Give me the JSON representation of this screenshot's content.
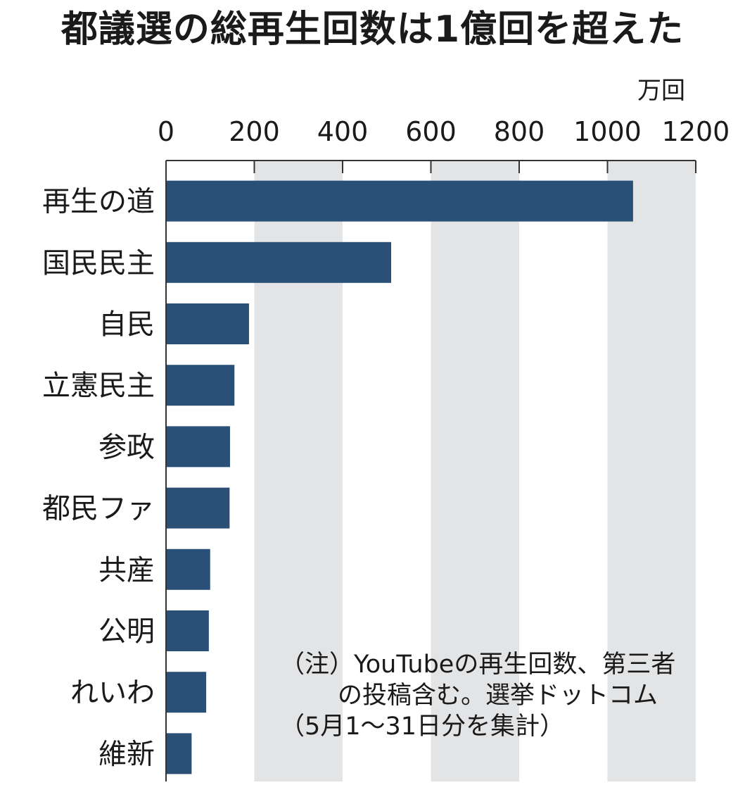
{
  "chart_data": {
    "type": "bar",
    "orientation": "horizontal",
    "title": "都議選の総再生回数は1億回を超えた",
    "unit": "万回",
    "xlim": [
      0,
      1200
    ],
    "ticks": [
      0,
      200,
      400,
      600,
      800,
      1000,
      1200
    ],
    "tick_labels": [
      "0",
      "200",
      "400",
      "600",
      "800",
      "1000",
      "1200"
    ],
    "categories": [
      "再生の道",
      "国民民主",
      "自民",
      "立憲民主",
      "参政",
      "都民ファ",
      "共産",
      "公明",
      "れいわ",
      "維新"
    ],
    "values": [
      1058,
      510,
      188,
      155,
      145,
      144,
      100,
      97,
      91,
      58
    ],
    "bar_color": "#2a5078",
    "band_color": "#e3e4e6",
    "grid": "alternating vertical bands"
  },
  "note": {
    "line1": "（注）YouTubeの再生回数、第三者",
    "line2": "の投稿含む。選挙ドットコム",
    "line3": "（5月1～31日分を集計）"
  }
}
